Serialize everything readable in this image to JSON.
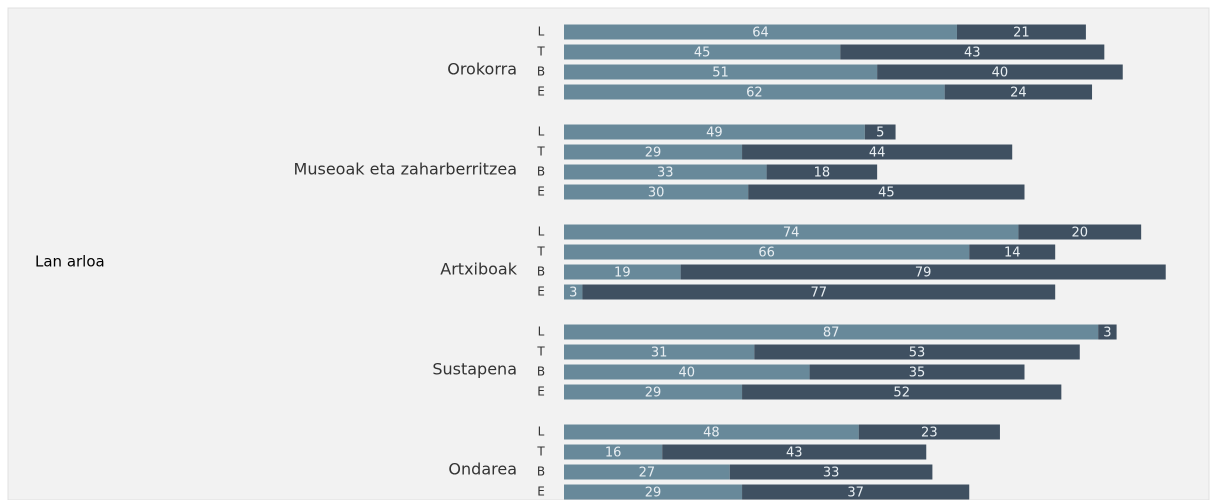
{
  "chart_data": {
    "type": "stacked-bar-horizontal",
    "y_label": "Lan arloa",
    "groups": [
      {
        "name": "Orokorra",
        "categories": [
          "L",
          "T",
          "B",
          "E"
        ]
      },
      {
        "name": "Museoak eta zaharberritzea",
        "categories": [
          "L",
          "T",
          "B",
          "E"
        ]
      },
      {
        "name": "Artxiboak",
        "categories": [
          "L",
          "T",
          "B",
          "E"
        ]
      },
      {
        "name": "Sustapena",
        "categories": [
          "L",
          "T",
          "B",
          "E"
        ]
      },
      {
        "name": "Ondarea",
        "categories": [
          "L",
          "T",
          "B",
          "E"
        ]
      }
    ],
    "xlim": [
      0,
      100
    ],
    "series": [
      {
        "color": "#68899a",
        "values": [
          [
            64,
            45,
            51,
            62
          ],
          [
            49,
            29,
            33,
            30
          ],
          [
            74,
            66,
            19,
            3
          ],
          [
            87,
            31,
            40,
            29
          ],
          [
            48,
            16,
            27,
            29
          ]
        ]
      },
      {
        "color": "#3f5061",
        "values": [
          [
            21,
            43,
            40,
            24
          ],
          [
            5,
            44,
            18,
            45
          ],
          [
            20,
            14,
            79,
            77
          ],
          [
            3,
            53,
            35,
            52
          ],
          [
            23,
            43,
            33,
            37
          ]
        ]
      }
    ]
  }
}
